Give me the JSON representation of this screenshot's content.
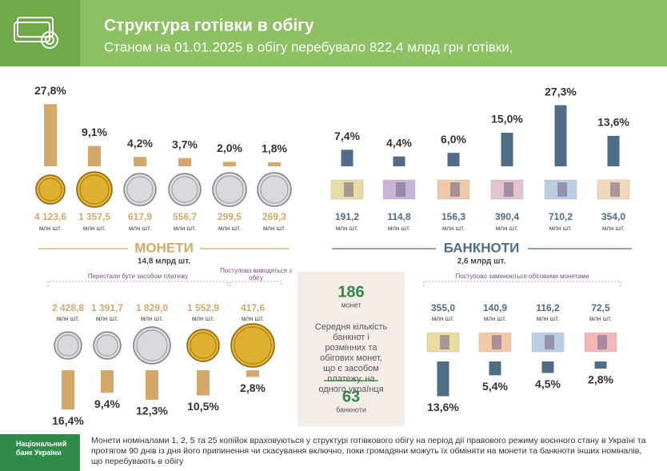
{
  "header": {
    "title": "Структура готівки в обігу",
    "subtitle": "Станом на 01.01.2025 в обігу перебувало 822,4 млрд грн готівки,"
  },
  "chart_data": [
    {
      "type": "bar",
      "title": "МОНЕТИ",
      "subtitle": "14,8 млрд шт.",
      "color": "#d3a86a",
      "unit": "млн шт.",
      "values": [
        27.8,
        9.1,
        4.2,
        3.7,
        2.0,
        1.8
      ],
      "value_labels": [
        "27,8%",
        "9,1%",
        "4,2%",
        "3,7%",
        "2,0%",
        "1,8%"
      ],
      "counts": [
        "4 123,6",
        "1 357,5",
        "617,9",
        "556,7",
        "299,5",
        "269,3"
      ]
    },
    {
      "type": "bar",
      "title": "БАНКНОТИ",
      "subtitle": "2,6 млрд шт.",
      "color": "#4f6d87",
      "unit": "млн шт.",
      "values": [
        7.4,
        4.4,
        6.0,
        15.0,
        27.3,
        13.6
      ],
      "value_labels": [
        "7,4%",
        "4,4%",
        "6,0%",
        "15,0%",
        "27,3%",
        "13,6%"
      ],
      "counts": [
        "191,2",
        "114,8",
        "156,3",
        "390,4",
        "710,2",
        "354,0"
      ]
    },
    {
      "type": "bar",
      "color": "#d3a86a",
      "unit": "млн шт.",
      "annotations": [
        "Перестали бути засобом платежу",
        "Поступово виводяться з обігу"
      ],
      "values": [
        16.4,
        9.4,
        12.3,
        10.5,
        2.8
      ],
      "value_labels": [
        "16,4%",
        "9,4%",
        "12,3%",
        "10,5%",
        "2,8%"
      ],
      "counts": [
        "2 428,8",
        "1 391,7",
        "1 829,0",
        "1 552,9",
        "417,6"
      ]
    },
    {
      "type": "bar",
      "color": "#4f6d87",
      "unit": "млн шт.",
      "annotations": [
        "Поступово замінюються обіговими монетами"
      ],
      "values": [
        13.6,
        5.4,
        4.5,
        2.8
      ],
      "value_labels": [
        "13,6%",
        "5,4%",
        "4,5%",
        "2,8%"
      ],
      "counts": [
        "355,0",
        "140,9",
        "116,2",
        "72,5"
      ]
    }
  ],
  "box": {
    "coins": 186,
    "coins_label": "монет",
    "text": "Середня кількість банкнот і розмінних та обігових монет, що є засобом платежу, на одного українця",
    "notes": 63,
    "notes_label": "банкноти"
  },
  "footer": {
    "logo": "Національний банк України",
    "note": "Монети номіналами 1, 2, 5 та 25 копійок враховуються у структурі готівкового обігу на період дії правового режиму воєнного стану в Україні та протягом 90 днів із дня його припинення чи скасування включно, поки громадяни можуть їх обміняти на  монети та  банкноти інших номіналів, що перебувають  в  обігу"
  }
}
